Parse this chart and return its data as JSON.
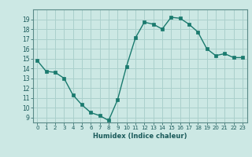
{
  "x": [
    0,
    1,
    2,
    3,
    4,
    5,
    6,
    7,
    8,
    9,
    10,
    11,
    12,
    13,
    14,
    15,
    16,
    17,
    18,
    19,
    20,
    21,
    22,
    23
  ],
  "y": [
    14.8,
    13.7,
    13.6,
    13.0,
    11.3,
    10.3,
    9.5,
    9.2,
    8.7,
    10.8,
    14.2,
    17.1,
    18.7,
    18.5,
    18.0,
    19.2,
    19.1,
    18.5,
    17.7,
    16.0,
    15.3,
    15.5,
    15.1,
    15.1
  ],
  "xlabel": "Humidex (Indice chaleur)",
  "ylim": [
    8.5,
    20.0
  ],
  "xlim": [
    -0.5,
    23.5
  ],
  "yticks": [
    9,
    10,
    11,
    12,
    13,
    14,
    15,
    16,
    17,
    18,
    19
  ],
  "xticks": [
    0,
    1,
    2,
    3,
    4,
    5,
    6,
    7,
    8,
    9,
    10,
    11,
    12,
    13,
    14,
    15,
    16,
    17,
    18,
    19,
    20,
    21,
    22,
    23
  ],
  "line_color": "#1a7a6e",
  "marker_color": "#1a7a6e",
  "bg_color": "#cce8e4",
  "grid_color": "#aad0cc",
  "xlabel_color": "#1a5a5a",
  "tick_color": "#1a5a5a",
  "spine_color": "#5a8a88"
}
